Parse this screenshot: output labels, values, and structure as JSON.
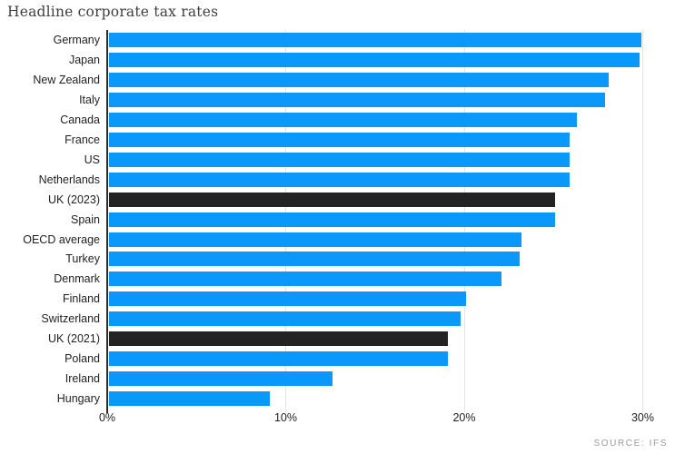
{
  "page": {
    "title": "Headline corporate tax rates",
    "source": "SOURCE: IFS"
  },
  "chart_data": {
    "type": "bar",
    "orientation": "horizontal",
    "title": "Headline corporate tax rates",
    "xlabel": "",
    "ylabel": "",
    "categories": [
      "Germany",
      "Japan",
      "New Zealand",
      "Italy",
      "Canada",
      "France",
      "US",
      "Netherlands",
      "UK (2023)",
      "Spain",
      "OECD average",
      "Turkey",
      "Denmark",
      "Finland",
      "Switzerland",
      "UK (2021)",
      "Poland",
      "Ireland",
      "Hungary"
    ],
    "values": [
      29.8,
      29.7,
      28.0,
      27.8,
      26.2,
      25.8,
      25.8,
      25.8,
      25.0,
      25.0,
      23.1,
      23.0,
      22.0,
      20.0,
      19.7,
      19.0,
      19.0,
      12.5,
      9.0
    ],
    "unit": "%",
    "highlighted_categories": [
      "UK (2023)",
      "UK (2021)"
    ],
    "x_ticks": [
      {
        "label": "0%",
        "value": 0
      },
      {
        "label": "10%",
        "value": 10
      },
      {
        "label": "20%",
        "value": 20
      },
      {
        "label": "30%",
        "value": 30
      }
    ],
    "xlim": [
      0,
      31.4
    ],
    "grid": "vertical-light",
    "legend": "none",
    "source": "SOURCE: IFS",
    "colors": {
      "bar": "#0a99fa",
      "highlight": "#232323",
      "grid": "#e5e5e5",
      "axis_line": "#2b2b2b",
      "title_text": "#3f3f3f",
      "label_text": "#1f1f1f",
      "source_text": "#9b9b9b",
      "background": "#ffffff"
    }
  }
}
